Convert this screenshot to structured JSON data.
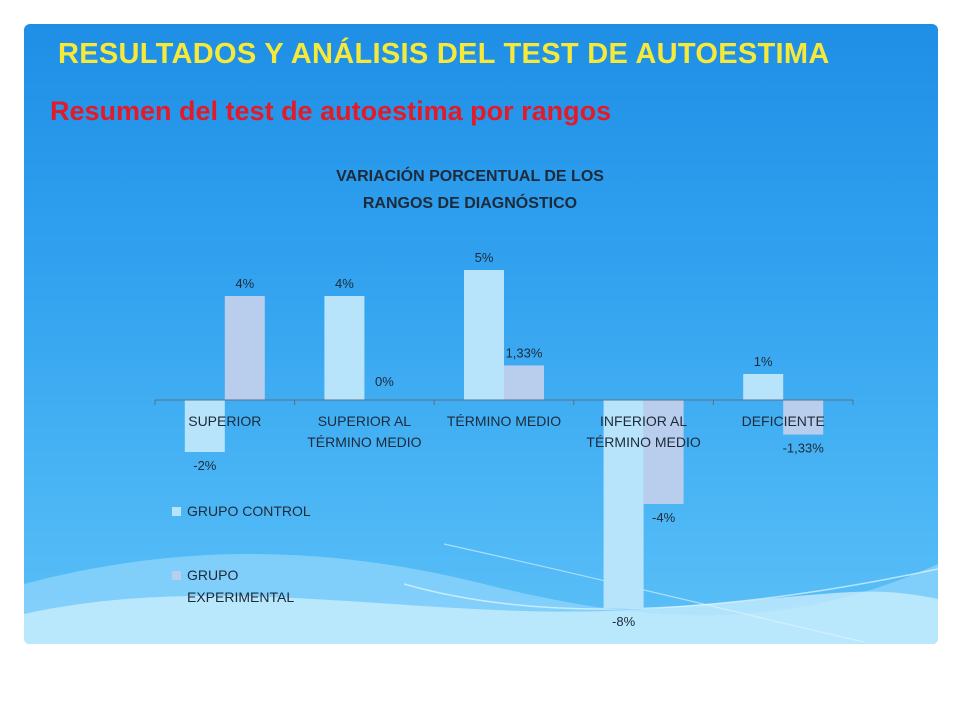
{
  "slide": {
    "title": "RESULTADOS Y ANÁLISIS DEL TEST DE AUTOESTIMA",
    "subtitle": "Resumen del test de autoestima por rangos",
    "colors": {
      "title": "#f7e93a",
      "subtitle": "#e21b2a",
      "background": "#2f9fee"
    }
  },
  "chart_data": {
    "type": "bar",
    "title_lines": [
      "VARIACIÓN PORCENTUAL DE LOS",
      "RANGOS DE DIAGNÓSTICO"
    ],
    "categories": [
      [
        "SUPERIOR"
      ],
      [
        "SUPERIOR AL",
        "TÉRMINO MEDIO"
      ],
      [
        "TÉRMINO MEDIO"
      ],
      [
        "INFERIOR AL",
        "TÉRMINO MEDIO"
      ],
      [
        "DEFICIENTE"
      ]
    ],
    "series": [
      {
        "name": "GRUPO CONTROL",
        "values": [
          -2,
          4,
          5,
          -8,
          1
        ],
        "labels": [
          "-2%",
          "4%",
          "5%",
          "-8%",
          "1%"
        ],
        "color": "#b8e4fb"
      },
      {
        "name": "GRUPO EXPERIMENTAL",
        "values": [
          4,
          0,
          1.33,
          -4,
          -1.33
        ],
        "labels": [
          "4%",
          "0%",
          "1,33%",
          "-4%",
          "-1,33%"
        ],
        "color": "#b9cdec"
      }
    ],
    "legend_position": "bottom-left",
    "grid": false
  }
}
